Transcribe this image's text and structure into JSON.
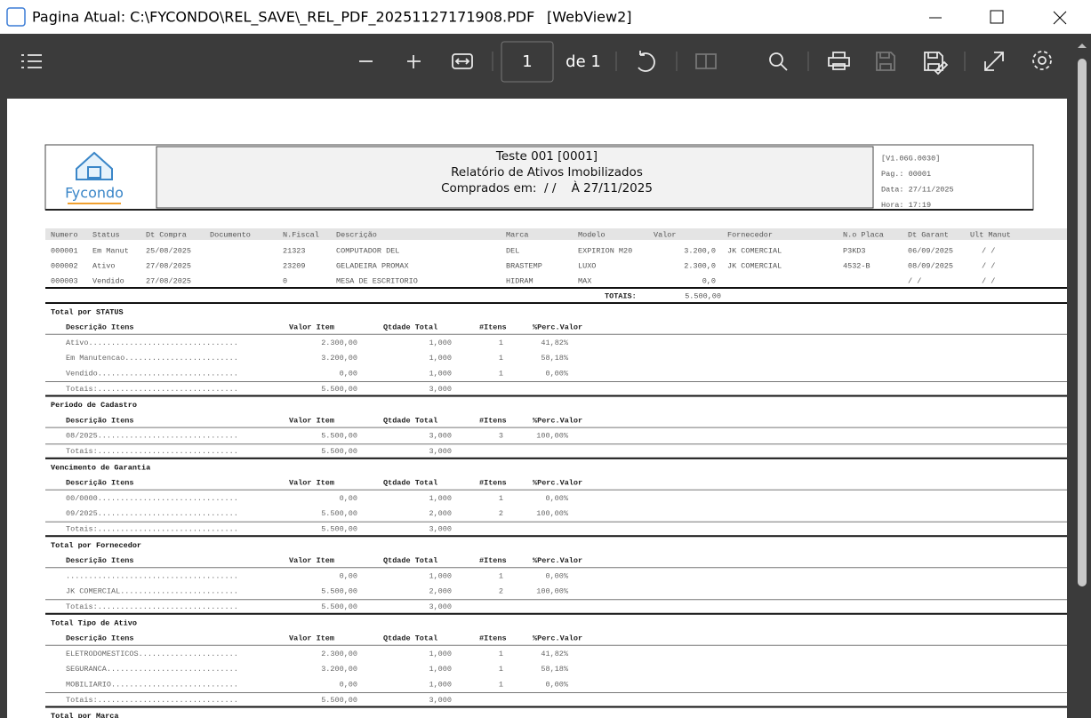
{
  "window": {
    "title": "Pagina Atual: C:\\FYCONDO\\REL_SAVE\\_REL_PDF_20251127171908.PDF",
    "tag": "[WebView2]"
  },
  "toolbar": {
    "page": "1",
    "page_of": "de 1"
  },
  "report": {
    "logo": "Fycondo",
    "title_lines": [
      "Teste 001 [0001]",
      "Relatório de Ativos Imobilizados",
      "Comprados em:  / /    À 27/11/2025"
    ],
    "info": [
      "[V1.06G.0030]",
      "Pag.: 00001",
      "Data: 27/11/2025",
      "Hora: 17:19"
    ],
    "columns": {
      "numero": "Numero",
      "status": "Status",
      "dt_compra": "Dt Compra",
      "documento": "Documento",
      "nfiscal": "N.Fiscal",
      "descricao": "Descrição",
      "marca": "Marca",
      "modelo": "Modelo",
      "valor": "Valor",
      "fornecedor": "Fornecedor",
      "placa": "N.o Placa",
      "dt_garant": "Dt Garant",
      "ult_manut": "Ult Manut"
    },
    "rows": [
      {
        "numero": "000001",
        "status": "Em Manut",
        "dt_compra": "25/08/2025",
        "nfiscal": "21323",
        "descricao": "COMPUTADOR DEL",
        "marca": "DEL",
        "modelo": "EXPIRION M20",
        "valor": "3.200,0",
        "fornecedor": "JK COMERCIAL",
        "placa": "P3KD3",
        "dt_garant": "06/09/2025",
        "ult_manut": "/ /"
      },
      {
        "numero": "000002",
        "status": "Ativo",
        "dt_compra": "27/08/2025",
        "nfiscal": "23209",
        "descricao": "GELADEIRA PROMAX",
        "marca": "BRASTEMP",
        "modelo": "LUXO",
        "valor": "2.300,0",
        "fornecedor": "JK COMERCIAL",
        "placa": "4532-B",
        "dt_garant": "08/09/2025",
        "ult_manut": "/ /"
      },
      {
        "numero": "000003",
        "status": "Vendido",
        "dt_compra": "27/08/2025",
        "nfiscal": "0",
        "descricao": "MESA DE ESCRITORIO",
        "marca": "HIDRAM",
        "modelo": "MAX",
        "valor": "0,0",
        "dt_garant": "/ /",
        "ult_manut": "/ /"
      }
    ],
    "totals": {
      "label": "TOTAIS:",
      "value": "5.500,00"
    },
    "section_header": [
      "Descrição Itens",
      "Valor Item",
      "Qtdade Total",
      "#Itens",
      "%Perc.Valor"
    ],
    "sections": [
      {
        "title": "Total por STATUS",
        "rows": [
          [
            "Ativo.................................",
            "2.300,00",
            "1,000",
            "1",
            "41,82%"
          ],
          [
            "Em Manutencao.........................",
            "3.200,00",
            "1,000",
            "1",
            "58,18%"
          ],
          [
            "Vendido...............................",
            "0,00",
            "1,000",
            "1",
            "0,00%"
          ]
        ],
        "totals": [
          "Totais:...............................",
          "5.500,00",
          "3,000"
        ]
      },
      {
        "title": "Periodo de Cadastro",
        "rows": [
          [
            "08/2025...............................",
            "5.500,00",
            "3,000",
            "3",
            "100,00%"
          ]
        ],
        "totals": [
          "Totais:...............................",
          "5.500,00",
          "3,000"
        ]
      },
      {
        "title": "Vencimento de Garantia",
        "rows": [
          [
            "00/0000...............................",
            "0,00",
            "1,000",
            "1",
            "0,00%"
          ],
          [
            "09/2025...............................",
            "5.500,00",
            "2,000",
            "2",
            "100,00%"
          ]
        ],
        "totals": [
          "Totais:...............................",
          "5.500,00",
          "3,000"
        ]
      },
      {
        "title": "Total por Fornecedor",
        "rows": [
          [
            "......................................",
            "0,00",
            "1,000",
            "1",
            "0,00%"
          ],
          [
            "JK COMERCIAL..........................",
            "5.500,00",
            "2,000",
            "2",
            "100,00%"
          ]
        ],
        "totals": [
          "Totais:...............................",
          "5.500,00",
          "3,000"
        ]
      },
      {
        "title": "Total Tipo de Ativo",
        "rows": [
          [
            "ELETRODOMESTICOS......................",
            "2.300,00",
            "1,000",
            "1",
            "41,82%"
          ],
          [
            "SEGURANCA.............................",
            "3.200,00",
            "1,000",
            "1",
            "58,18%"
          ],
          [
            "MOBILIARIO............................",
            "0,00",
            "1,000",
            "1",
            "0,00%"
          ]
        ],
        "totals": [
          "Totais:...............................",
          "5.500,00",
          "3,000"
        ]
      },
      {
        "title": "Total por Marca"
      }
    ]
  }
}
